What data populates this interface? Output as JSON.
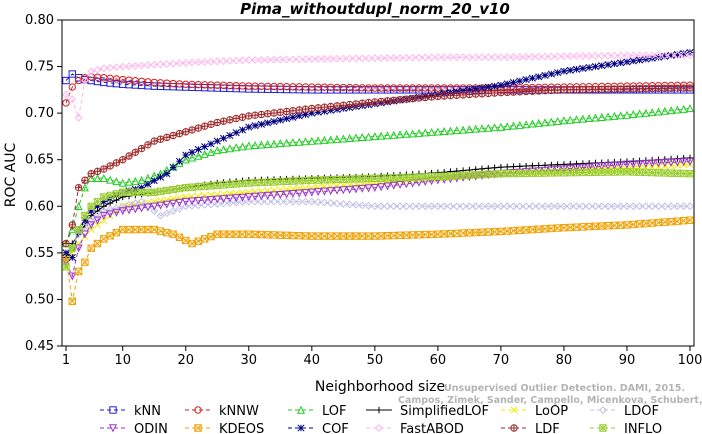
{
  "chart_data": {
    "type": "line",
    "title": "Pima_withoutdupl_norm_20_v10",
    "xlabel": "Neighborhood size",
    "ylabel": "ROC AUC",
    "xlim": [
      1,
      100
    ],
    "ylim": [
      0.45,
      0.8
    ],
    "x_ticks": [
      "1",
      "10",
      "20",
      "30",
      "40",
      "50",
      "60",
      "70",
      "80",
      "90",
      "100"
    ],
    "y_ticks": [
      "0.45",
      "0.50",
      "0.55",
      "0.60",
      "0.65",
      "0.70",
      "0.75",
      "0.80"
    ],
    "legend_position": "bottom",
    "watermark_lines": [
      "Unsupervised Outlier Detection. DAMI, 2015.",
      "Campos, Zimek, Sander, Campello, Micenkova, Schubert, Assent, Houle"
    ],
    "series": [
      {
        "name": "kNN",
        "color": "#1f1fd6",
        "marker": "square",
        "dash": "4,3",
        "points": [
          [
            1,
            0.735
          ],
          [
            2,
            0.742
          ],
          [
            3,
            0.738
          ],
          [
            4,
            0.736
          ],
          [
            5,
            0.735
          ],
          [
            7,
            0.733
          ],
          [
            10,
            0.731
          ],
          [
            15,
            0.729
          ],
          [
            20,
            0.728
          ],
          [
            30,
            0.726
          ],
          [
            40,
            0.725
          ],
          [
            50,
            0.725
          ],
          [
            60,
            0.725
          ],
          [
            70,
            0.725
          ],
          [
            80,
            0.725
          ],
          [
            90,
            0.725
          ],
          [
            100,
            0.725
          ]
        ]
      },
      {
        "name": "kNNW",
        "color": "#d42020",
        "marker": "circle",
        "dash": "4,3",
        "points": [
          [
            1,
            0.711
          ],
          [
            2,
            0.728
          ],
          [
            3,
            0.735
          ],
          [
            4,
            0.738
          ],
          [
            5,
            0.739
          ],
          [
            7,
            0.738
          ],
          [
            10,
            0.736
          ],
          [
            15,
            0.733
          ],
          [
            20,
            0.731
          ],
          [
            30,
            0.729
          ],
          [
            40,
            0.728
          ],
          [
            50,
            0.727
          ],
          [
            60,
            0.727
          ],
          [
            70,
            0.727
          ],
          [
            80,
            0.728
          ],
          [
            90,
            0.729
          ],
          [
            100,
            0.73
          ]
        ]
      },
      {
        "name": "LOF",
        "color": "#22cc22",
        "marker": "triangle-up",
        "dash": "4,3",
        "points": [
          [
            1,
            0.56
          ],
          [
            2,
            0.575
          ],
          [
            3,
            0.6
          ],
          [
            4,
            0.62
          ],
          [
            5,
            0.63
          ],
          [
            7,
            0.63
          ],
          [
            10,
            0.625
          ],
          [
            13,
            0.628
          ],
          [
            16,
            0.635
          ],
          [
            20,
            0.65
          ],
          [
            25,
            0.66
          ],
          [
            30,
            0.665
          ],
          [
            40,
            0.67
          ],
          [
            50,
            0.675
          ],
          [
            60,
            0.68
          ],
          [
            70,
            0.685
          ],
          [
            80,
            0.692
          ],
          [
            90,
            0.698
          ],
          [
            100,
            0.705
          ]
        ]
      },
      {
        "name": "SimplifiedLOF",
        "color": "#000000",
        "marker": "plus",
        "dash": "",
        "points": [
          [
            1,
            0.545
          ],
          [
            2,
            0.56
          ],
          [
            3,
            0.57
          ],
          [
            4,
            0.58
          ],
          [
            5,
            0.59
          ],
          [
            7,
            0.6
          ],
          [
            10,
            0.61
          ],
          [
            15,
            0.615
          ],
          [
            20,
            0.62
          ],
          [
            25,
            0.625
          ],
          [
            30,
            0.628
          ],
          [
            40,
            0.63
          ],
          [
            50,
            0.632
          ],
          [
            60,
            0.636
          ],
          [
            70,
            0.642
          ],
          [
            80,
            0.645
          ],
          [
            90,
            0.648
          ],
          [
            100,
            0.652
          ]
        ]
      },
      {
        "name": "LoOP",
        "color": "#eeee00",
        "marker": "x",
        "dash": "4,3",
        "points": [
          [
            1,
            0.54
          ],
          [
            2,
            0.55
          ],
          [
            3,
            0.56
          ],
          [
            5,
            0.575
          ],
          [
            7,
            0.585
          ],
          [
            10,
            0.6
          ],
          [
            15,
            0.605
          ],
          [
            20,
            0.61
          ],
          [
            30,
            0.615
          ],
          [
            40,
            0.62
          ],
          [
            50,
            0.625
          ],
          [
            60,
            0.63
          ],
          [
            70,
            0.635
          ],
          [
            80,
            0.638
          ],
          [
            90,
            0.64
          ],
          [
            100,
            0.645
          ]
        ]
      },
      {
        "name": "LDOF",
        "color": "#c0c0e8",
        "marker": "diamond",
        "dash": "4,3",
        "points": [
          [
            1,
            0.54
          ],
          [
            2,
            0.555
          ],
          [
            3,
            0.57
          ],
          [
            5,
            0.585
          ],
          [
            7,
            0.595
          ],
          [
            10,
            0.6
          ],
          [
            13,
            0.605
          ],
          [
            16,
            0.59
          ],
          [
            20,
            0.6
          ],
          [
            30,
            0.605
          ],
          [
            40,
            0.605
          ],
          [
            50,
            0.6
          ],
          [
            60,
            0.6
          ],
          [
            70,
            0.6
          ],
          [
            80,
            0.6
          ],
          [
            90,
            0.6
          ],
          [
            100,
            0.6
          ]
        ]
      },
      {
        "name": "ODIN",
        "color": "#9a32cd",
        "marker": "triangle-down",
        "dash": "4,3",
        "points": [
          [
            1,
            0.54
          ],
          [
            2,
            0.525
          ],
          [
            3,
            0.555
          ],
          [
            4,
            0.57
          ],
          [
            5,
            0.58
          ],
          [
            7,
            0.59
          ],
          [
            10,
            0.595
          ],
          [
            15,
            0.6
          ],
          [
            20,
            0.605
          ],
          [
            30,
            0.61
          ],
          [
            40,
            0.615
          ],
          [
            50,
            0.62
          ],
          [
            60,
            0.628
          ],
          [
            70,
            0.635
          ],
          [
            80,
            0.64
          ],
          [
            90,
            0.645
          ],
          [
            100,
            0.648
          ]
        ]
      },
      {
        "name": "KDEOS",
        "color": "#f0a000",
        "marker": "square-x",
        "dash": "4,3",
        "points": [
          [
            1,
            0.545
          ],
          [
            2,
            0.498
          ],
          [
            3,
            0.53
          ],
          [
            4,
            0.54
          ],
          [
            5,
            0.555
          ],
          [
            7,
            0.565
          ],
          [
            10,
            0.575
          ],
          [
            15,
            0.575
          ],
          [
            18,
            0.57
          ],
          [
            21,
            0.56
          ],
          [
            25,
            0.57
          ],
          [
            30,
            0.57
          ],
          [
            40,
            0.568
          ],
          [
            50,
            0.568
          ],
          [
            60,
            0.57
          ],
          [
            70,
            0.573
          ],
          [
            80,
            0.577
          ],
          [
            90,
            0.58
          ],
          [
            100,
            0.585
          ]
        ]
      },
      {
        "name": "COF",
        "color": "#000080",
        "marker": "asterisk",
        "dash": "4,3",
        "points": [
          [
            1,
            0.55
          ],
          [
            2,
            0.545
          ],
          [
            3,
            0.575
          ],
          [
            4,
            0.585
          ],
          [
            5,
            0.595
          ],
          [
            7,
            0.605
          ],
          [
            10,
            0.615
          ],
          [
            13,
            0.62
          ],
          [
            17,
            0.635
          ],
          [
            20,
            0.655
          ],
          [
            25,
            0.67
          ],
          [
            30,
            0.685
          ],
          [
            40,
            0.7
          ],
          [
            50,
            0.71
          ],
          [
            60,
            0.72
          ],
          [
            70,
            0.73
          ],
          [
            80,
            0.745
          ],
          [
            90,
            0.755
          ],
          [
            100,
            0.765
          ]
        ]
      },
      {
        "name": "FastABOD",
        "color": "#ffb6f0",
        "marker": "diamond",
        "dash": "4,3",
        "points": [
          [
            1,
            0.72
          ],
          [
            2,
            0.715
          ],
          [
            3,
            0.695
          ],
          [
            4,
            0.735
          ],
          [
            5,
            0.745
          ],
          [
            7,
            0.748
          ],
          [
            10,
            0.75
          ],
          [
            15,
            0.752
          ],
          [
            20,
            0.754
          ],
          [
            30,
            0.757
          ],
          [
            40,
            0.758
          ],
          [
            50,
            0.759
          ],
          [
            60,
            0.76
          ],
          [
            70,
            0.76
          ],
          [
            80,
            0.761
          ],
          [
            90,
            0.762
          ],
          [
            100,
            0.762
          ]
        ]
      },
      {
        "name": "LDF",
        "color": "#a02828",
        "marker": "circle-plus",
        "dash": "4,3",
        "points": [
          [
            1,
            0.56
          ],
          [
            2,
            0.58
          ],
          [
            3,
            0.62
          ],
          [
            4,
            0.628
          ],
          [
            5,
            0.635
          ],
          [
            7,
            0.64
          ],
          [
            10,
            0.65
          ],
          [
            15,
            0.67
          ],
          [
            20,
            0.68
          ],
          [
            25,
            0.69
          ],
          [
            30,
            0.697
          ],
          [
            40,
            0.705
          ],
          [
            50,
            0.712
          ],
          [
            60,
            0.718
          ],
          [
            70,
            0.722
          ],
          [
            80,
            0.725
          ],
          [
            90,
            0.726
          ],
          [
            100,
            0.727
          ]
        ]
      },
      {
        "name": "INFLO",
        "color": "#9acd32",
        "marker": "star-box",
        "dash": "4,3",
        "points": [
          [
            1,
            0.535
          ],
          [
            2,
            0.555
          ],
          [
            3,
            0.575
          ],
          [
            4,
            0.59
          ],
          [
            5,
            0.6
          ],
          [
            7,
            0.61
          ],
          [
            10,
            0.615
          ],
          [
            15,
            0.615
          ],
          [
            20,
            0.62
          ],
          [
            30,
            0.625
          ],
          [
            40,
            0.628
          ],
          [
            50,
            0.63
          ],
          [
            60,
            0.632
          ],
          [
            70,
            0.635
          ],
          [
            80,
            0.636
          ],
          [
            90,
            0.637
          ],
          [
            100,
            0.635
          ]
        ]
      }
    ]
  }
}
